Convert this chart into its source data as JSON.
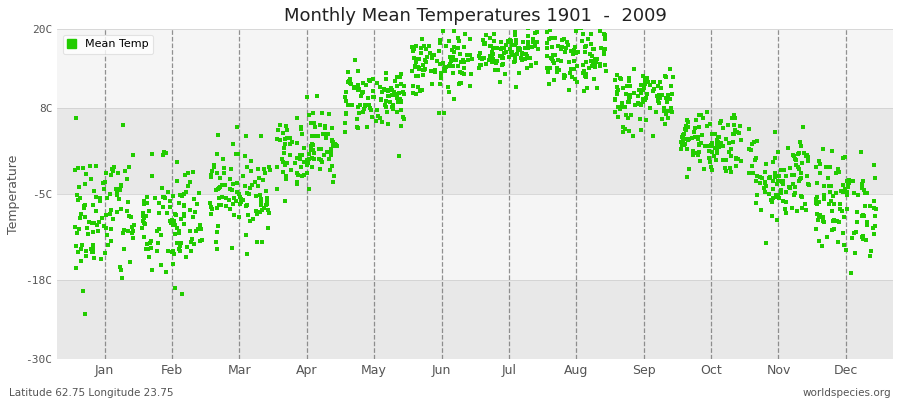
{
  "title": "Monthly Mean Temperatures 1901  -  2009",
  "ylabel": "Temperature",
  "bottom_left": "Latitude 62.75 Longitude 23.75",
  "bottom_right": "worldspecies.org",
  "dot_color": "#22CC00",
  "background_color": "#ffffff",
  "plot_bg_color": "#ffffff",
  "band_color_dark": "#e8e8e8",
  "band_color_light": "#f5f5f5",
  "ylim": [
    -30,
    20
  ],
  "yticks": [
    -30,
    -18,
    -5,
    8,
    20
  ],
  "ytick_labels": [
    "-30C",
    "-18C",
    "-5C",
    "8C",
    "20C"
  ],
  "months": [
    "Jan",
    "Feb",
    "Mar",
    "Apr",
    "May",
    "Jun",
    "Jul",
    "Aug",
    "Sep",
    "Oct",
    "Nov",
    "Dec"
  ],
  "month_means": [
    -8.5,
    -9.5,
    -4.5,
    2.0,
    9.5,
    14.5,
    17.0,
    15.5,
    9.5,
    3.0,
    -2.5,
    -6.5
  ],
  "month_stds": [
    5.5,
    5.0,
    3.5,
    3.0,
    2.5,
    2.5,
    2.0,
    2.5,
    2.5,
    2.5,
    3.5,
    4.0
  ],
  "n_years": 109,
  "seed": 42,
  "figsize": [
    9.0,
    4.0
  ],
  "dpi": 100
}
